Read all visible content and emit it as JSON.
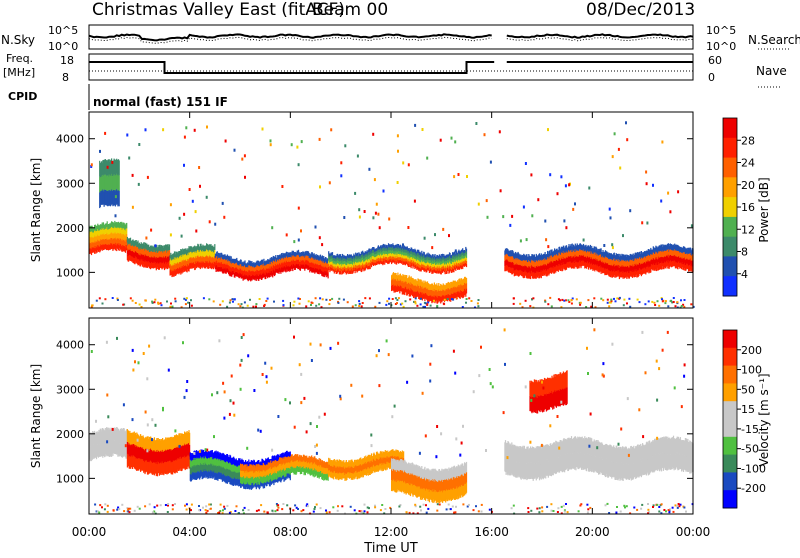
{
  "header": {
    "station": "Christmas Valley East (fitACF)",
    "beam": "Beam 00",
    "date": "08/Dec/2013"
  },
  "noise_panel": {
    "left_label": "N.Sky",
    "left_ticks": [
      "10^5",
      "10^0"
    ],
    "right_ticks": [
      "10^5",
      "10^0"
    ],
    "right_label": "N.Search"
  },
  "freq_panel": {
    "left_label_1": "Freq.",
    "left_label_2": "[MHz]",
    "left_ticks": [
      "18",
      "8"
    ],
    "right_ticks": [
      "60",
      "0"
    ],
    "right_label": "Nave"
  },
  "cpid": {
    "label": "CPID",
    "mode": "normal (fast) 151 IF"
  },
  "colors": {
    "power_scale": [
      "#1030ff",
      "#2050b0",
      "#3c8a6a",
      "#50b050",
      "#f0d000",
      "#ffa000",
      "#ff6000",
      "#ff2000",
      "#ee0000"
    ],
    "velocity_scale": [
      "#0000ff",
      "#1a4ac0",
      "#3a8a5a",
      "#50c040",
      "#c8c8c8",
      "#c8c8c8",
      "#ffa000",
      "#ff7000",
      "#ff3000",
      "#ee0000"
    ]
  },
  "chart_data": [
    {
      "type": "heatmap",
      "name": "power",
      "ylabel": "Slant Range [km]",
      "yticks": [
        "1000",
        "2000",
        "3000",
        "4000"
      ],
      "ylim": [
        200,
        4600
      ],
      "xlim_hours": [
        0,
        24
      ],
      "colorbar_label": "Power [dB]",
      "colorbar_ticks": [
        "28",
        "24",
        "20",
        "16",
        "12",
        "8",
        "4"
      ],
      "colorbar_range": [
        0,
        32
      ]
    },
    {
      "type": "heatmap",
      "name": "velocity",
      "ylabel": "Slant Range [km]",
      "yticks": [
        "1000",
        "2000",
        "3000",
        "4000"
      ],
      "ylim": [
        200,
        4600
      ],
      "xlim_hours": [
        0,
        24
      ],
      "colorbar_label": "Velocity [m s⁻¹]",
      "colorbar_ticks": [
        "200",
        "100",
        "50",
        "15",
        "-15",
        "-50",
        "-100",
        "-200"
      ]
    }
  ],
  "x_axis": {
    "ticks": [
      "00:00",
      "04:00",
      "08:00",
      "12:00",
      "16:00",
      "20:00",
      "00:00"
    ],
    "label": "Time UT"
  }
}
